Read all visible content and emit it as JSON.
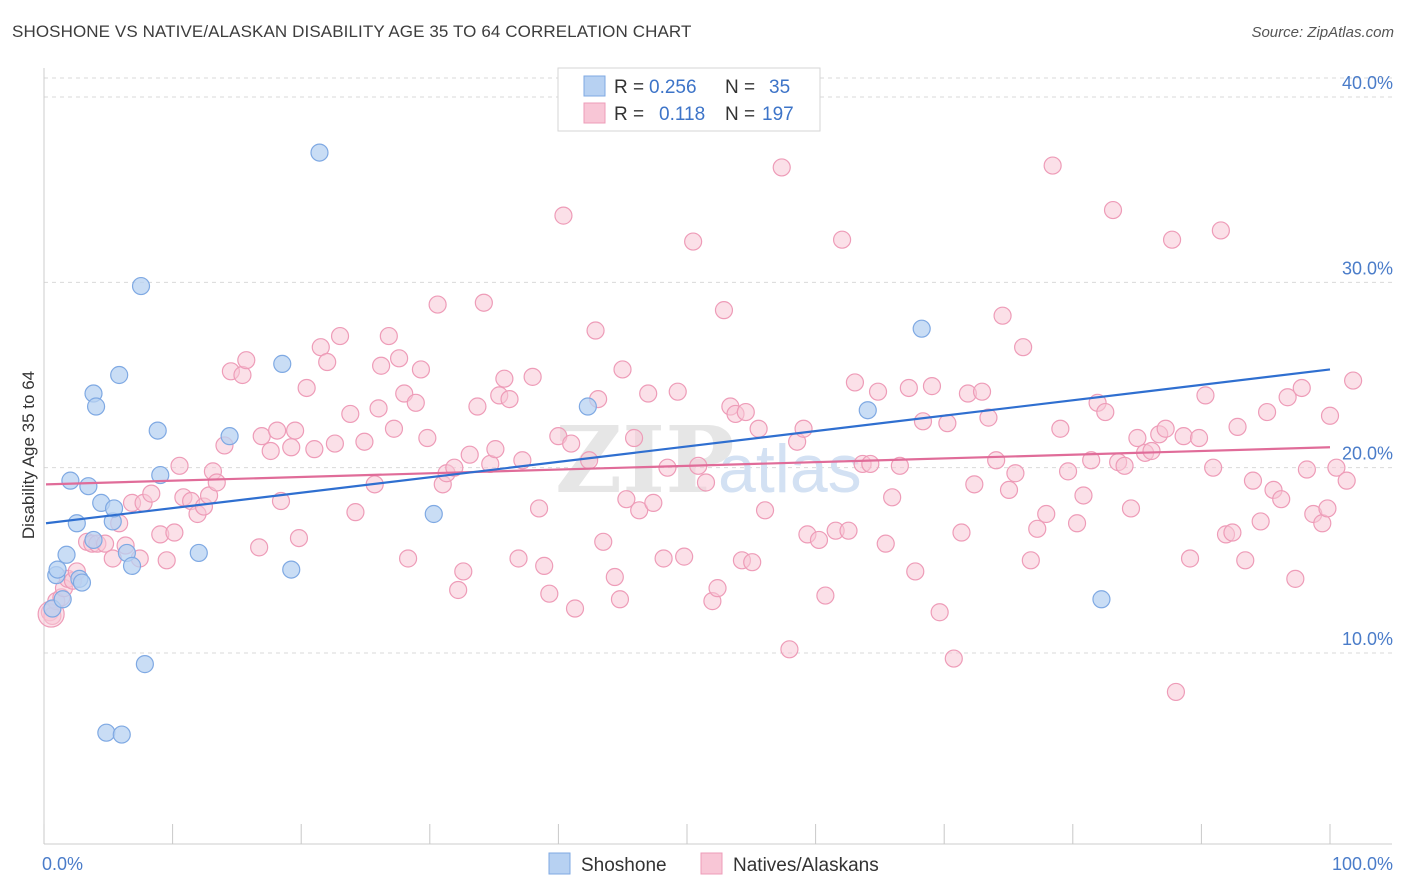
{
  "title": "SHOSHONE VS NATIVE/ALASKAN DISABILITY AGE 35 TO 64 CORRELATION CHART",
  "source": "Source: ZipAtlas.com",
  "watermark": {
    "zip": "ZIP",
    "atlas": "atlas"
  },
  "colors": {
    "shoshone_fill": "#b7d1f2",
    "shoshone_stroke": "#7fa9e3",
    "shoshone_line": "#2f6fd0",
    "native_fill": "#f8c6d6",
    "native_stroke": "#ee9cb8",
    "native_line": "#e06c99",
    "grid": "#d9d9d9",
    "axis_text": "#4a7cc9"
  },
  "legend": {
    "rows": [
      {
        "r_label": "R = ",
        "r_value": "0.256",
        "n_label": "N = ",
        "n_value": "35",
        "series": "shoshone"
      },
      {
        "r_label": "R = ",
        "r_value": "0.118",
        "n_label": "N = ",
        "n_value": "197",
        "series": "native"
      }
    ]
  },
  "chart_data": {
    "type": "scatter",
    "title": "SHOSHONE VS NATIVE/ALASKAN DISABILITY AGE 35 TO 64 CORRELATION CHART",
    "xlabel": "",
    "ylabel": "Disability Age 35 to 64",
    "xlim": [
      0,
      100
    ],
    "ylim": [
      0,
      42
    ],
    "x_tick_labels": [
      "0.0%",
      "100.0%"
    ],
    "y_ticks": [
      10,
      20,
      30,
      40
    ],
    "y_tick_labels": [
      "10.0%",
      "20.0%",
      "30.0%",
      "40.0%"
    ],
    "grid": true,
    "legend_position": "top-center",
    "series": [
      {
        "name": "Shoshone",
        "trend": {
          "x": [
            0,
            100
          ],
          "y": [
            17.0,
            25.3
          ]
        },
        "points": [
          [
            0.5,
            12.4
          ],
          [
            0.8,
            14.2
          ],
          [
            0.9,
            14.5
          ],
          [
            1.3,
            12.9
          ],
          [
            1.6,
            15.3
          ],
          [
            1.9,
            19.3
          ],
          [
            2.4,
            17.0
          ],
          [
            2.6,
            14.0
          ],
          [
            2.8,
            13.8
          ],
          [
            3.3,
            19.0
          ],
          [
            3.7,
            16.1
          ],
          [
            3.7,
            24.0
          ],
          [
            3.9,
            23.3
          ],
          [
            4.3,
            18.1
          ],
          [
            4.7,
            5.7
          ],
          [
            5.2,
            17.1
          ],
          [
            5.3,
            17.8
          ],
          [
            5.7,
            25.0
          ],
          [
            5.9,
            5.6
          ],
          [
            6.3,
            15.4
          ],
          [
            6.7,
            14.7
          ],
          [
            7.4,
            29.8
          ],
          [
            7.7,
            9.4
          ],
          [
            8.7,
            22.0
          ],
          [
            8.9,
            19.6
          ],
          [
            11.9,
            15.4
          ],
          [
            14.3,
            21.7
          ],
          [
            18.4,
            25.6
          ],
          [
            19.1,
            14.5
          ],
          [
            21.3,
            37.0
          ],
          [
            30.2,
            17.5
          ],
          [
            42.2,
            23.3
          ],
          [
            64.0,
            23.1
          ],
          [
            68.2,
            27.5
          ],
          [
            82.2,
            12.9
          ]
        ]
      },
      {
        "name": "Natives/Alaskans",
        "trend": {
          "x": [
            0,
            100
          ],
          "y": [
            19.1,
            21.1
          ]
        },
        "points": [
          [
            0.3,
            12.2
          ],
          [
            0.5,
            12.0
          ],
          [
            0.8,
            12.8
          ],
          [
            1.2,
            13.0
          ],
          [
            1.4,
            13.5
          ],
          [
            1.7,
            14.0
          ],
          [
            2.1,
            13.9
          ],
          [
            2.4,
            14.4
          ],
          [
            3.2,
            16.0
          ],
          [
            3.6,
            15.9
          ],
          [
            4.0,
            15.9
          ],
          [
            4.6,
            15.9
          ],
          [
            5.2,
            15.1
          ],
          [
            5.7,
            17.0
          ],
          [
            6.2,
            15.8
          ],
          [
            6.7,
            18.1
          ],
          [
            7.3,
            15.1
          ],
          [
            7.6,
            18.1
          ],
          [
            8.2,
            18.6
          ],
          [
            8.9,
            16.4
          ],
          [
            9.4,
            15.0
          ],
          [
            10.0,
            16.5
          ],
          [
            10.4,
            20.1
          ],
          [
            10.7,
            18.4
          ],
          [
            11.3,
            18.2
          ],
          [
            11.8,
            17.5
          ],
          [
            12.3,
            17.9
          ],
          [
            12.7,
            18.5
          ],
          [
            13.0,
            19.8
          ],
          [
            13.3,
            19.2
          ],
          [
            13.9,
            21.2
          ],
          [
            14.4,
            25.2
          ],
          [
            15.3,
            25.0
          ],
          [
            15.6,
            25.8
          ],
          [
            16.6,
            15.7
          ],
          [
            16.8,
            21.7
          ],
          [
            17.5,
            20.9
          ],
          [
            18.0,
            22.0
          ],
          [
            18.3,
            18.2
          ],
          [
            19.1,
            21.1
          ],
          [
            19.4,
            22.0
          ],
          [
            19.7,
            16.2
          ],
          [
            20.3,
            24.3
          ],
          [
            20.9,
            21.0
          ],
          [
            21.4,
            26.5
          ],
          [
            21.9,
            25.7
          ],
          [
            22.5,
            21.3
          ],
          [
            22.9,
            27.1
          ],
          [
            23.7,
            22.9
          ],
          [
            24.1,
            17.6
          ],
          [
            24.8,
            21.4
          ],
          [
            25.6,
            19.1
          ],
          [
            25.9,
            23.2
          ],
          [
            26.1,
            25.5
          ],
          [
            26.7,
            27.1
          ],
          [
            27.1,
            22.1
          ],
          [
            27.5,
            25.9
          ],
          [
            27.9,
            24.0
          ],
          [
            28.2,
            15.1
          ],
          [
            28.8,
            23.5
          ],
          [
            29.2,
            25.3
          ],
          [
            29.7,
            21.6
          ],
          [
            30.5,
            28.8
          ],
          [
            30.9,
            19.1
          ],
          [
            31.2,
            19.7
          ],
          [
            31.8,
            20.0
          ],
          [
            32.1,
            13.4
          ],
          [
            32.5,
            14.4
          ],
          [
            33.0,
            20.7
          ],
          [
            33.6,
            23.3
          ],
          [
            34.1,
            28.9
          ],
          [
            34.6,
            20.2
          ],
          [
            35.0,
            21.0
          ],
          [
            35.3,
            23.9
          ],
          [
            35.7,
            24.8
          ],
          [
            36.1,
            23.7
          ],
          [
            36.8,
            15.1
          ],
          [
            37.1,
            20.4
          ],
          [
            37.9,
            24.9
          ],
          [
            38.4,
            17.8
          ],
          [
            38.8,
            14.7
          ],
          [
            39.2,
            13.2
          ],
          [
            39.9,
            21.7
          ],
          [
            40.3,
            33.6
          ],
          [
            40.9,
            21.3
          ],
          [
            41.2,
            12.4
          ],
          [
            42.3,
            20.4
          ],
          [
            42.8,
            27.4
          ],
          [
            43.0,
            23.7
          ],
          [
            43.4,
            16.0
          ],
          [
            44.3,
            14.1
          ],
          [
            44.7,
            12.9
          ],
          [
            44.9,
            25.3
          ],
          [
            45.2,
            18.3
          ],
          [
            45.8,
            21.6
          ],
          [
            46.2,
            17.7
          ],
          [
            46.9,
            24.0
          ],
          [
            47.3,
            18.1
          ],
          [
            48.1,
            15.1
          ],
          [
            48.4,
            20.0
          ],
          [
            49.2,
            24.1
          ],
          [
            49.7,
            15.2
          ],
          [
            50.4,
            32.2
          ],
          [
            50.8,
            20.1
          ],
          [
            51.4,
            19.2
          ],
          [
            51.9,
            12.8
          ],
          [
            52.3,
            13.5
          ],
          [
            52.8,
            28.5
          ],
          [
            53.3,
            23.3
          ],
          [
            53.7,
            22.9
          ],
          [
            54.2,
            15.0
          ],
          [
            54.5,
            23.0
          ],
          [
            55.0,
            14.9
          ],
          [
            55.5,
            22.1
          ],
          [
            56.0,
            17.7
          ],
          [
            57.3,
            36.2
          ],
          [
            57.9,
            10.2
          ],
          [
            58.5,
            21.4
          ],
          [
            59.3,
            16.4
          ],
          [
            60.2,
            16.1
          ],
          [
            60.7,
            13.1
          ],
          [
            61.5,
            16.6
          ],
          [
            62.0,
            32.3
          ],
          [
            62.5,
            16.6
          ],
          [
            63.0,
            24.6
          ],
          [
            63.6,
            20.2
          ],
          [
            64.2,
            20.2
          ],
          [
            64.8,
            24.1
          ],
          [
            65.4,
            15.9
          ],
          [
            65.9,
            18.4
          ],
          [
            66.5,
            20.1
          ],
          [
            67.2,
            24.3
          ],
          [
            67.7,
            14.4
          ],
          [
            68.3,
            22.5
          ],
          [
            69.0,
            24.4
          ],
          [
            69.6,
            12.2
          ],
          [
            70.2,
            22.4
          ],
          [
            70.7,
            9.7
          ],
          [
            71.3,
            16.5
          ],
          [
            71.8,
            24.0
          ],
          [
            72.3,
            19.1
          ],
          [
            72.9,
            24.1
          ],
          [
            73.4,
            22.7
          ],
          [
            74.0,
            20.4
          ],
          [
            74.5,
            28.2
          ],
          [
            75.0,
            18.8
          ],
          [
            75.5,
            19.7
          ],
          [
            76.1,
            26.5
          ],
          [
            76.7,
            15.0
          ],
          [
            77.2,
            16.7
          ],
          [
            77.9,
            17.5
          ],
          [
            78.4,
            36.3
          ],
          [
            79.0,
            22.1
          ],
          [
            79.6,
            19.8
          ],
          [
            80.3,
            17.0
          ],
          [
            80.8,
            18.5
          ],
          [
            81.4,
            20.4
          ],
          [
            81.9,
            23.5
          ],
          [
            82.5,
            23.0
          ],
          [
            83.1,
            33.9
          ],
          [
            83.5,
            20.3
          ],
          [
            84.0,
            20.1
          ],
          [
            84.5,
            17.8
          ],
          [
            85.0,
            21.6
          ],
          [
            85.6,
            20.8
          ],
          [
            86.1,
            20.9
          ],
          [
            86.7,
            21.8
          ],
          [
            87.2,
            22.1
          ],
          [
            87.7,
            32.3
          ],
          [
            88.0,
            7.9
          ],
          [
            88.6,
            21.7
          ],
          [
            89.1,
            15.1
          ],
          [
            89.8,
            21.6
          ],
          [
            90.3,
            23.9
          ],
          [
            90.9,
            20.0
          ],
          [
            91.5,
            32.8
          ],
          [
            91.9,
            16.4
          ],
          [
            92.4,
            16.5
          ],
          [
            92.8,
            22.2
          ],
          [
            93.4,
            15.0
          ],
          [
            94.0,
            19.3
          ],
          [
            94.6,
            17.1
          ],
          [
            95.1,
            23.0
          ],
          [
            95.6,
            18.8
          ],
          [
            96.2,
            18.3
          ],
          [
            96.7,
            23.8
          ],
          [
            97.3,
            14.0
          ],
          [
            97.8,
            24.3
          ],
          [
            98.2,
            19.9
          ],
          [
            98.7,
            17.5
          ],
          [
            99.4,
            17.0
          ],
          [
            99.8,
            17.8
          ],
          [
            100.0,
            22.8
          ],
          [
            100.5,
            20.0
          ],
          [
            101.3,
            19.3
          ],
          [
            101.8,
            24.7
          ],
          [
            59.0,
            22.1
          ]
        ]
      }
    ]
  },
  "bottom_legend": [
    {
      "label": "Shoshone",
      "series": "shoshone"
    },
    {
      "label": "Natives/Alaskans",
      "series": "native"
    }
  ]
}
